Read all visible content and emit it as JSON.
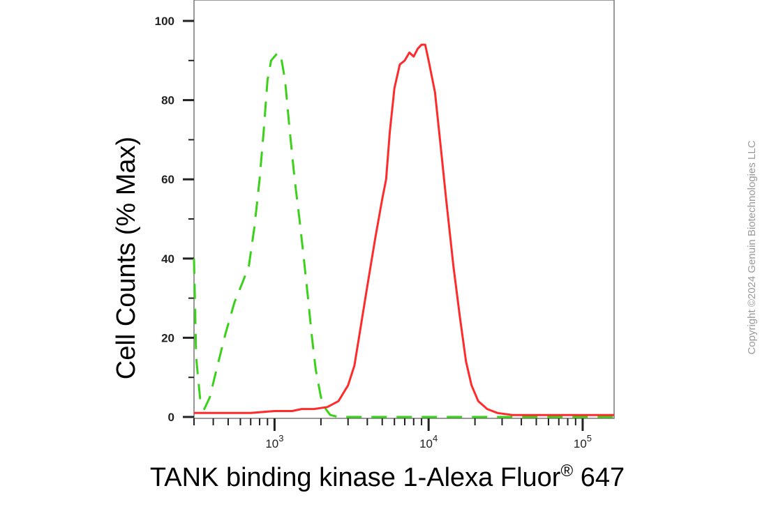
{
  "chart_data": {
    "type": "line",
    "title": "",
    "xlabel": "TANK binding kinase 1-Alexa Fluor",
    "xlabel_superscript": "®",
    "xlabel_suffix": " 647",
    "ylabel": "Cell Counts (% Max)",
    "x_scale": "log",
    "xlim": [
      300,
      160000
    ],
    "ylim": [
      0,
      100
    ],
    "x_ticks": [
      {
        "value": 1000,
        "base": "10",
        "exp": "3"
      },
      {
        "value": 10000,
        "base": "10",
        "exp": "4"
      },
      {
        "value": 100000,
        "base": "10",
        "exp": "5"
      }
    ],
    "y_ticks": [
      "0",
      "20",
      "40",
      "60",
      "80",
      "100"
    ],
    "grid": false,
    "legend": "none",
    "series": [
      {
        "color": "#3ad11a",
        "style": "dashed",
        "points": [
          [
            300,
            40
          ],
          [
            310,
            15
          ],
          [
            330,
            4
          ],
          [
            350,
            2
          ],
          [
            380,
            5
          ],
          [
            420,
            12
          ],
          [
            480,
            21
          ],
          [
            550,
            29
          ],
          [
            620,
            34
          ],
          [
            680,
            38
          ],
          [
            740,
            48
          ],
          [
            800,
            60
          ],
          [
            850,
            72
          ],
          [
            900,
            85
          ],
          [
            950,
            90
          ],
          [
            1000,
            91
          ],
          [
            1050,
            92
          ],
          [
            1100,
            91
          ],
          [
            1170,
            85
          ],
          [
            1250,
            73
          ],
          [
            1350,
            60
          ],
          [
            1450,
            50
          ],
          [
            1550,
            40
          ],
          [
            1650,
            30
          ],
          [
            1750,
            20
          ],
          [
            1850,
            12
          ],
          [
            2000,
            5
          ],
          [
            2150,
            2
          ],
          [
            2300,
            0.5
          ],
          [
            2600,
            0
          ],
          [
            160000,
            0
          ]
        ]
      },
      {
        "color": "#ff2a2a",
        "style": "solid",
        "points": [
          [
            300,
            1
          ],
          [
            500,
            1
          ],
          [
            700,
            1
          ],
          [
            1000,
            1.5
          ],
          [
            1300,
            1.5
          ],
          [
            1500,
            2
          ],
          [
            1800,
            2
          ],
          [
            2200,
            2.5
          ],
          [
            2600,
            4
          ],
          [
            3000,
            8
          ],
          [
            3300,
            13
          ],
          [
            3600,
            22
          ],
          [
            4000,
            33
          ],
          [
            4500,
            45
          ],
          [
            5000,
            55
          ],
          [
            5300,
            60
          ],
          [
            5600,
            72
          ],
          [
            6000,
            83
          ],
          [
            6500,
            89
          ],
          [
            7000,
            90
          ],
          [
            7500,
            92
          ],
          [
            8000,
            91
          ],
          [
            8500,
            93
          ],
          [
            9000,
            94
          ],
          [
            9500,
            94
          ],
          [
            10000,
            90
          ],
          [
            11000,
            82
          ],
          [
            12000,
            68
          ],
          [
            13000,
            55
          ],
          [
            14500,
            38
          ],
          [
            16000,
            25
          ],
          [
            17500,
            14
          ],
          [
            19000,
            8
          ],
          [
            21000,
            4
          ],
          [
            24000,
            2
          ],
          [
            28000,
            1
          ],
          [
            35000,
            0.5
          ],
          [
            50000,
            0.5
          ],
          [
            80000,
            0.5
          ],
          [
            160000,
            0.5
          ]
        ]
      }
    ]
  },
  "copyright": "Copyright ©2024 Genuin Biotechnologies LLC"
}
